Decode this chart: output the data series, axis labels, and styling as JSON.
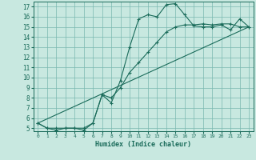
{
  "xlabel": "Humidex (Indice chaleur)",
  "bg_color": "#c8e8e0",
  "grid_color": "#7ab8b0",
  "line_color": "#1a6b5a",
  "xlim": [
    -0.5,
    23.5
  ],
  "ylim": [
    4.7,
    17.5
  ],
  "xticks": [
    0,
    1,
    2,
    3,
    4,
    5,
    6,
    7,
    8,
    9,
    10,
    11,
    12,
    13,
    14,
    15,
    16,
    17,
    18,
    19,
    20,
    21,
    22,
    23
  ],
  "yticks": [
    5,
    6,
    7,
    8,
    9,
    10,
    11,
    12,
    13,
    14,
    15,
    16,
    17
  ],
  "line1_x": [
    0,
    1,
    2,
    3,
    4,
    5,
    6,
    7,
    8,
    9,
    10,
    11,
    12,
    13,
    14,
    15,
    16,
    17,
    18,
    19,
    20,
    21,
    22,
    23
  ],
  "line1_y": [
    5.5,
    5.0,
    4.8,
    5.0,
    5.0,
    4.8,
    5.5,
    8.3,
    7.5,
    9.7,
    13.0,
    15.8,
    16.2,
    16.0,
    17.2,
    17.3,
    16.2,
    15.1,
    15.0,
    15.0,
    15.2,
    14.7,
    15.8,
    15.0
  ],
  "line2_x": [
    0,
    1,
    2,
    3,
    4,
    5,
    6,
    7,
    8,
    9,
    10,
    11,
    12,
    13,
    14,
    15,
    16,
    17,
    18,
    19,
    20,
    21,
    22,
    23
  ],
  "line2_y": [
    5.5,
    5.0,
    5.0,
    5.0,
    5.0,
    5.0,
    5.5,
    8.3,
    8.0,
    9.0,
    10.5,
    11.5,
    12.5,
    13.5,
    14.5,
    15.0,
    15.2,
    15.2,
    15.3,
    15.2,
    15.3,
    15.3,
    15.0,
    15.0
  ],
  "line3_x": [
    0,
    23
  ],
  "line3_y": [
    5.5,
    15.0
  ]
}
